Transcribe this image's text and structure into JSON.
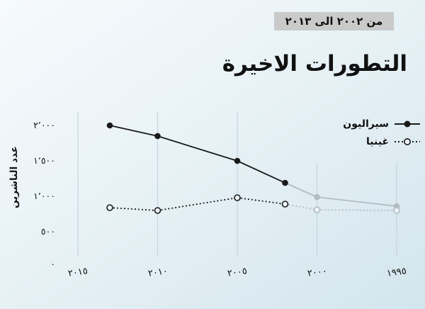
{
  "header": {
    "range_label": "من ٢٠٠٢ الى ٢٠١٣"
  },
  "title": "التطورات الاخيرة",
  "legend": [
    {
      "label": "سيراليون",
      "marker": "solid-line-filled-dot"
    },
    {
      "label": "غينيا",
      "marker": "dotted-line-open-dot"
    }
  ],
  "y_axis": {
    "label": "عدد الناشرين",
    "ticks": [
      {
        "value": 2000,
        "label": "٢٬٠٠٠"
      },
      {
        "value": 1500,
        "label": "١٬٥٠٠"
      },
      {
        "value": 1000,
        "label": "١٬٠٠٠"
      },
      {
        "value": 500,
        "label": "٥٠٠"
      },
      {
        "value": 0,
        "label": "٠"
      }
    ]
  },
  "x_axis": {
    "ticks": [
      {
        "year": 2015,
        "label": "٢٠١٥"
      },
      {
        "year": 2010,
        "label": "٢٠١٠"
      },
      {
        "year": 2005,
        "label": "٢٠٠٥"
      },
      {
        "year": 2000,
        "label": "٢٠٠٠"
      },
      {
        "year": 1995,
        "label": "١٩٩٥"
      }
    ]
  },
  "colors": {
    "background_top": "#f6fafc",
    "background_bottom": "#d3e5ed",
    "badge_bg": "#cacaca",
    "series_active": "#1a1a1a",
    "series_faded": "#b1bcc1",
    "gridline": "#c6d5dc",
    "open_dot_fill": "#edf4f7",
    "text": "#111111"
  },
  "chart_data": {
    "type": "line",
    "title": "التطورات الاخيرة",
    "ylabel": "عدد الناشرين",
    "xlabel": "",
    "x": [
      2013,
      2010,
      2005,
      2002,
      2000,
      1995
    ],
    "series": [
      {
        "name": "سيراليون",
        "values": [
          2000,
          1850,
          1500,
          1190,
          990,
          860
        ],
        "style": "solid",
        "marker": "filled"
      },
      {
        "name": "غينيا",
        "values": [
          840,
          800,
          980,
          890,
          810,
          800
        ],
        "style": "dotted",
        "marker": "open"
      }
    ],
    "x_axis_reversed": true,
    "x_ticks": [
      2015,
      2010,
      2005,
      2000,
      1995
    ],
    "highlight_range": [
      2002,
      2013
    ],
    "faded_years": [
      2000,
      1995
    ],
    "ylim": [
      0,
      2000
    ],
    "grid": "vertical-only",
    "legend_position": "top-right"
  }
}
